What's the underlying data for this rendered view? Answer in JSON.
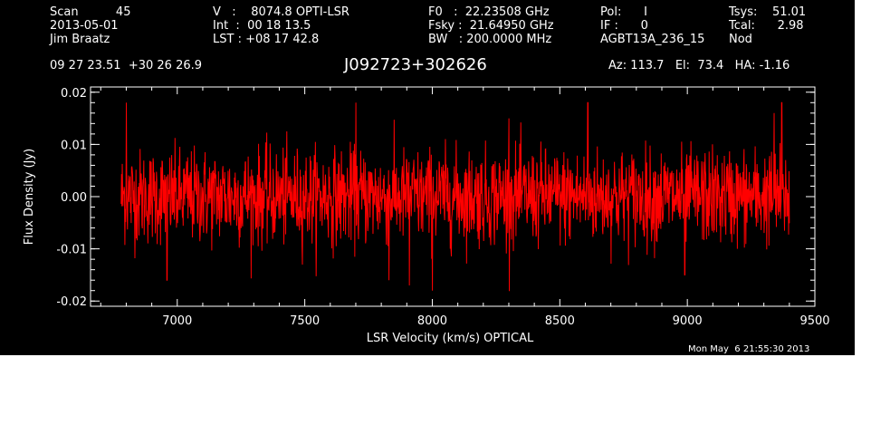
{
  "header": {
    "col1": [
      "Scan          45",
      "2013-05-01",
      "Jim Braatz"
    ],
    "col2": [
      "V   :    8074.8 OPTI-LSR",
      "Int  :  00 18 13.5",
      "LST : +08 17 42.8"
    ],
    "col3": [
      "F0   :  22.23508 GHz",
      "Fsky :  21.64950 GHz",
      "BW   : 200.0000 MHz"
    ],
    "col4": [
      "Pol:      I",
      "IF :      0",
      "AGBT13A_236_15"
    ],
    "col5": [
      "Tsys:    51.01",
      "Tcal:      2.98",
      "Nod"
    ],
    "coords": "09 27 23.51  +30 26 26.9",
    "source": "J092723+302626",
    "azelha": "Az: 113.7   El:  73.4   HA: -1.16",
    "timestamp": "Mon May  6 21:55:30 2013"
  },
  "colors": {
    "background": "#000000",
    "foreground": "#ffffff",
    "spectrum": "#ff0000"
  },
  "chart_data": {
    "type": "line",
    "xlabel": "LSR Velocity (km/s) OPTICAL",
    "ylabel": "Flux Density (Jy)",
    "xlim": [
      6660,
      9500
    ],
    "ylim": [
      -0.021,
      0.021
    ],
    "xticks": [
      7000,
      7500,
      8000,
      8500,
      9000,
      9500
    ],
    "xtick_labels": [
      "7000",
      "7500",
      "8000",
      "8500",
      "9000",
      "9500"
    ],
    "yticks": [
      -0.02,
      -0.01,
      0.0,
      0.01,
      0.02
    ],
    "ytick_labels": [
      "-0.02",
      "-0.01",
      "0.00",
      "0.01",
      "0.02"
    ],
    "grid": false,
    "series": [
      {
        "x_start": 6780,
        "x_end": 9400,
        "noise_rms": 0.0045,
        "mean": 0.0,
        "spikes": [
          {
            "x": 6800,
            "y": 0.018
          },
          {
            "x": 6960,
            "y": -0.016
          },
          {
            "x": 7700,
            "y": 0.018
          },
          {
            "x": 7830,
            "y": -0.016
          },
          {
            "x": 7910,
            "y": -0.017
          },
          {
            "x": 8000,
            "y": -0.018
          },
          {
            "x": 8300,
            "y": 0.015
          },
          {
            "x": 8610,
            "y": 0.018
          },
          {
            "x": 8990,
            "y": -0.015
          },
          {
            "x": 9340,
            "y": 0.016
          },
          {
            "x": 9370,
            "y": 0.018
          }
        ]
      }
    ]
  }
}
